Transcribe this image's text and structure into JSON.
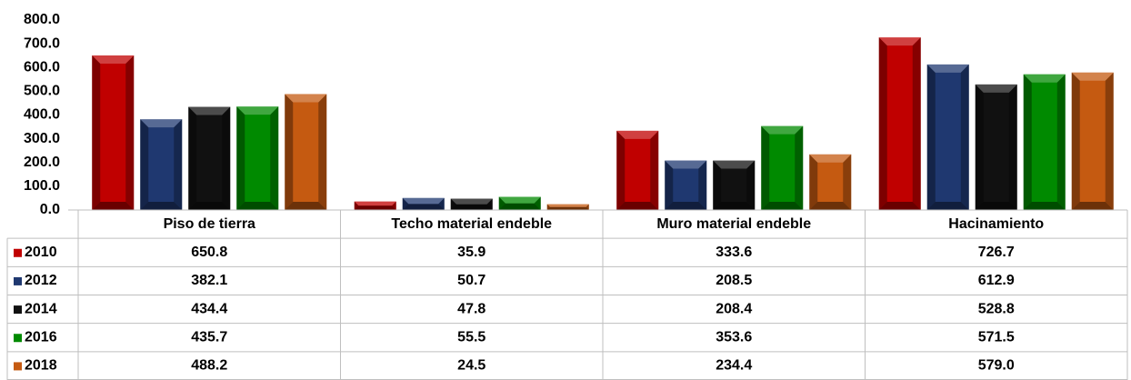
{
  "chart_data": {
    "type": "bar",
    "categories": [
      "Piso de tierra",
      "Techo material endeble",
      "Muro material endeble",
      "Hacinamiento"
    ],
    "series": [
      {
        "name": "2010",
        "color": "#c00000",
        "values": [
          650.8,
          35.9,
          333.6,
          726.7
        ],
        "value_labels": [
          "650.8",
          "35.9",
          "333.6",
          "726.7"
        ]
      },
      {
        "name": "2012",
        "color": "#1f3870",
        "values": [
          382.1,
          50.7,
          208.5,
          612.9
        ],
        "value_labels": [
          "382.1",
          "50.7",
          "208.5",
          "612.9"
        ]
      },
      {
        "name": "2014",
        "color": "#111111",
        "values": [
          434.4,
          47.8,
          208.4,
          528.8
        ],
        "value_labels": [
          "434.4",
          "47.8",
          "208.4",
          "528.8"
        ]
      },
      {
        "name": "2016",
        "color": "#008a00",
        "values": [
          435.7,
          55.5,
          353.6,
          571.5
        ],
        "value_labels": [
          "435.7",
          "55.5",
          "353.6",
          "571.5"
        ]
      },
      {
        "name": "2018",
        "color": "#c55a11",
        "values": [
          488.2,
          24.5,
          234.4,
          579
        ],
        "value_labels": [
          "488.2",
          "24.5",
          "234.4",
          "579.0"
        ]
      }
    ],
    "ylim": [
      0,
      800
    ],
    "yticks": [
      {
        "value": 0,
        "label": "0.0"
      },
      {
        "value": 100,
        "label": "100.0"
      },
      {
        "value": 200,
        "label": "200.0"
      },
      {
        "value": 300,
        "label": "300.0"
      },
      {
        "value": 400,
        "label": "400.0"
      },
      {
        "value": 500,
        "label": "500.0"
      },
      {
        "value": 600,
        "label": "600.0"
      },
      {
        "value": 700,
        "label": "700.0"
      },
      {
        "value": 800,
        "label": "800.0"
      }
    ],
    "grid": false
  }
}
